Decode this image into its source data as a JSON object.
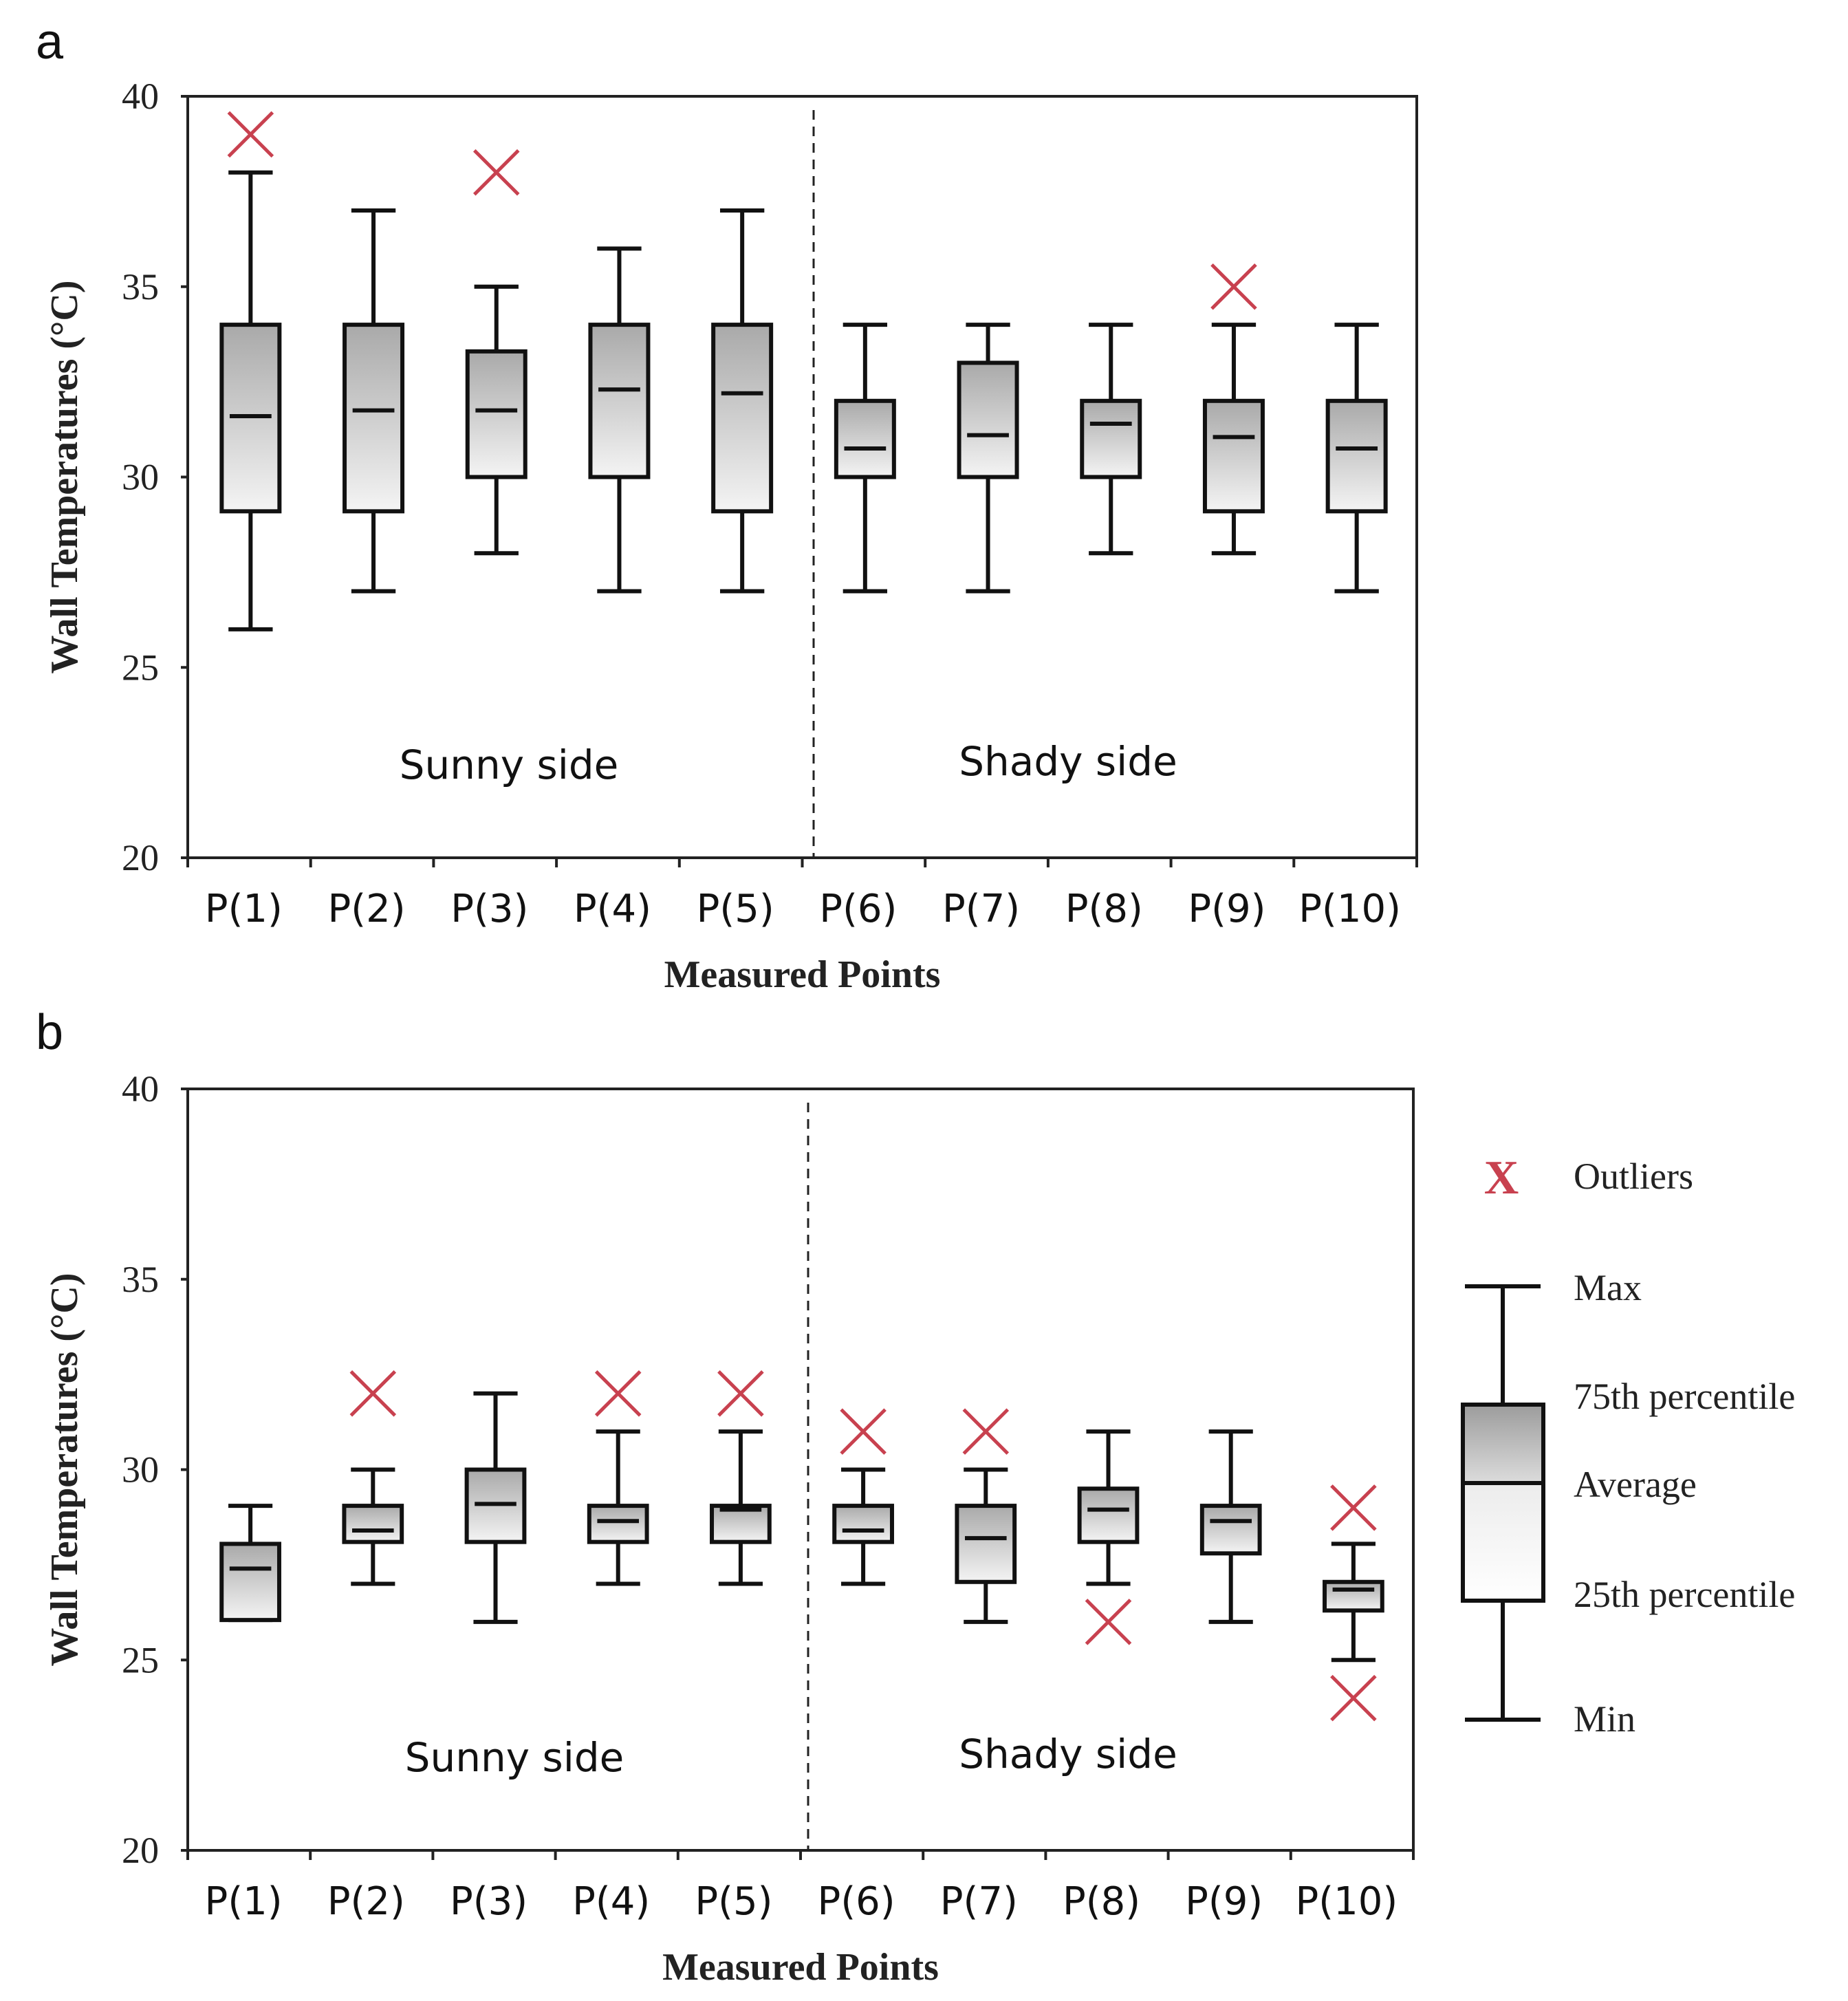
{
  "chart_data": [
    {
      "panel": "a",
      "type": "box",
      "xlabel": "Measured Points",
      "ylabel": "Wall Temperatures (°C)",
      "ylim": [
        20,
        40
      ],
      "yticks": [
        "20",
        "25",
        "30",
        "35",
        "40"
      ],
      "categories": [
        "P(1)",
        "P(2)",
        "P(3)",
        "P(4)",
        "P(5)",
        "P(6)",
        "P(7)",
        "P(8)",
        "P(9)",
        "P(10)"
      ],
      "regions": [
        "Sunny side",
        "Shady side"
      ],
      "boxes": [
        {
          "min": 26,
          "q1": 29.1,
          "mean": 31.6,
          "q3": 34,
          "max": 38,
          "outliers": [
            39
          ]
        },
        {
          "min": 27,
          "q1": 29.1,
          "mean": 31.75,
          "q3": 34,
          "max": 37,
          "outliers": []
        },
        {
          "min": 28,
          "q1": 30,
          "mean": 31.75,
          "q3": 33.3,
          "max": 35,
          "outliers": [
            38
          ]
        },
        {
          "min": 27,
          "q1": 30,
          "mean": 32.3,
          "q3": 34,
          "max": 36,
          "outliers": []
        },
        {
          "min": 27,
          "q1": 29.1,
          "mean": 32.2,
          "q3": 34,
          "max": 37,
          "outliers": []
        },
        {
          "min": 27,
          "q1": 30,
          "mean": 30.75,
          "q3": 32,
          "max": 34,
          "outliers": []
        },
        {
          "min": 27,
          "q1": 30,
          "mean": 31.1,
          "q3": 33,
          "max": 34,
          "outliers": []
        },
        {
          "min": 28,
          "q1": 30,
          "mean": 31.4,
          "q3": 32,
          "max": 34,
          "outliers": []
        },
        {
          "min": 28,
          "q1": 29.1,
          "mean": 31.05,
          "q3": 32,
          "max": 34,
          "outliers": [
            35
          ]
        },
        {
          "min": 27,
          "q1": 29.1,
          "mean": 30.75,
          "q3": 32,
          "max": 34,
          "outliers": []
        }
      ]
    },
    {
      "panel": "b",
      "type": "box",
      "xlabel": "Measured Points",
      "ylabel": "Wall Temperatures (°C)",
      "ylim": [
        20,
        40
      ],
      "yticks": [
        "20",
        "25",
        "30",
        "35",
        "40"
      ],
      "categories": [
        "P(1)",
        "P(2)",
        "P(3)",
        "P(4)",
        "P(5)",
        "P(6)",
        "P(7)",
        "P(8)",
        "P(9)",
        "P(10)"
      ],
      "regions": [
        "Sunny side",
        "Shady side"
      ],
      "boxes": [
        {
          "min": 26.05,
          "q1": 26.05,
          "mean": 27.4,
          "q3": 28.05,
          "max": 29.05,
          "outliers": []
        },
        {
          "min": 27,
          "q1": 28.1,
          "mean": 28.4,
          "q3": 29.05,
          "max": 30,
          "outliers": [
            32
          ]
        },
        {
          "min": 26,
          "q1": 28.1,
          "mean": 29.1,
          "q3": 30,
          "max": 32,
          "outliers": []
        },
        {
          "min": 27,
          "q1": 28.1,
          "mean": 28.65,
          "q3": 29.05,
          "max": 31,
          "outliers": [
            32
          ]
        },
        {
          "min": 27,
          "q1": 28.1,
          "mean": 28.95,
          "q3": 29.05,
          "max": 31,
          "outliers": [
            32
          ]
        },
        {
          "min": 27,
          "q1": 28.1,
          "mean": 28.4,
          "q3": 29.05,
          "max": 30,
          "outliers": [
            31
          ]
        },
        {
          "min": 26,
          "q1": 27.05,
          "mean": 28.2,
          "q3": 29.05,
          "max": 30,
          "outliers": [
            31
          ]
        },
        {
          "min": 27,
          "q1": 28.1,
          "mean": 28.95,
          "q3": 29.5,
          "max": 31,
          "outliers": [
            26
          ]
        },
        {
          "min": 26,
          "q1": 27.8,
          "mean": 28.65,
          "q3": 29.05,
          "max": 31,
          "outliers": []
        },
        {
          "min": 25,
          "q1": 26.3,
          "mean": 26.85,
          "q3": 27.05,
          "max": 28.05,
          "outliers": [
            29,
            24
          ]
        }
      ]
    }
  ],
  "legend": {
    "outlier_symbol": "X",
    "outliers_label": "Outliers",
    "max_label": "Max",
    "q3_label": "75th percentile",
    "mean_label": "Average",
    "q1_label": "25th percentile",
    "min_label": "Min",
    "outlier_color": "#c8414f"
  }
}
